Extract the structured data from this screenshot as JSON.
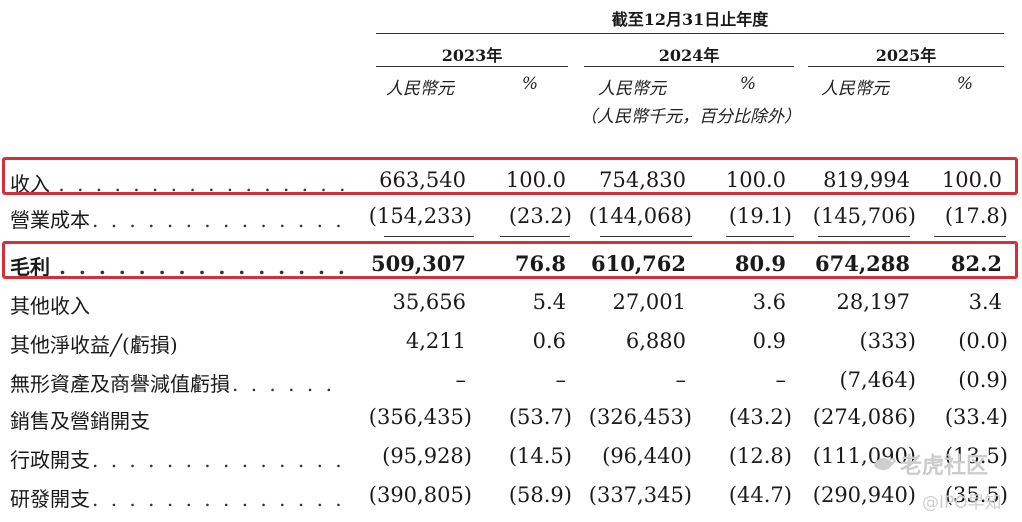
{
  "header": {
    "period": "截至12月31日止年度",
    "years": [
      "2023年",
      "2024年",
      "2025年"
    ],
    "unit_rmb": "人民幣元",
    "unit_pct": "%",
    "unit_note": "（人民幣千元，百分比除外）"
  },
  "rows": [
    {
      "label": "收入",
      "v2023": "663,540",
      "p2023": "100.0",
      "v2024": "754,830",
      "p2024": "100.0",
      "v2025": "819,994",
      "p2025": "100.0"
    },
    {
      "label": "營業成本",
      "v2023": "(154,233)",
      "p2023": "(23.2)",
      "v2024": "(144,068)",
      "p2024": "(19.1)",
      "v2025": "(145,706)",
      "p2025": "(17.8)"
    },
    {
      "label": "毛利",
      "v2023": "509,307",
      "p2023": "76.8",
      "v2024": "610,762",
      "p2024": "80.9",
      "v2025": "674,288",
      "p2025": "82.2"
    },
    {
      "label": "其他收入",
      "v2023": "35,656",
      "p2023": "5.4",
      "v2024": "27,001",
      "p2024": "3.6",
      "v2025": "28,197",
      "p2025": "3.4"
    },
    {
      "label": "其他淨收益╱(虧損)",
      "v2023": "4,211",
      "p2023": "0.6",
      "v2024": "6,880",
      "p2024": "0.9",
      "v2025": "(333)",
      "p2025": "(0.0)"
    },
    {
      "label": "無形資產及商譽減值虧損",
      "v2023": "–",
      "p2023": "–",
      "v2024": "–",
      "p2024": "–",
      "v2025": "(7,464)",
      "p2025": "(0.9)"
    },
    {
      "label": "銷售及營銷開支",
      "v2023": "(356,435)",
      "p2023": "(53.7)",
      "v2024": "(326,453)",
      "p2024": "(43.2)",
      "v2025": "(274,086)",
      "p2025": "(33.4)"
    },
    {
      "label": "行政開支",
      "v2023": "(95,928)",
      "p2023": "(14.5)",
      "v2024": "(96,440)",
      "p2024": "(12.8)",
      "v2025": "(111,090)",
      "p2025": "(13.5)"
    },
    {
      "label": "研發開支",
      "v2023": "(390,805)",
      "p2023": "(58.9)",
      "v2024": "(337,345)",
      "p2024": "(44.7)",
      "v2025": "(290,940)",
      "p2025": "(35.5)"
    }
  ],
  "watermark": {
    "brand": "老虎社区",
    "handle": "@IPO早知"
  },
  "colors": {
    "highlight": "#d2303a",
    "watermark": "#c9c9c9"
  }
}
